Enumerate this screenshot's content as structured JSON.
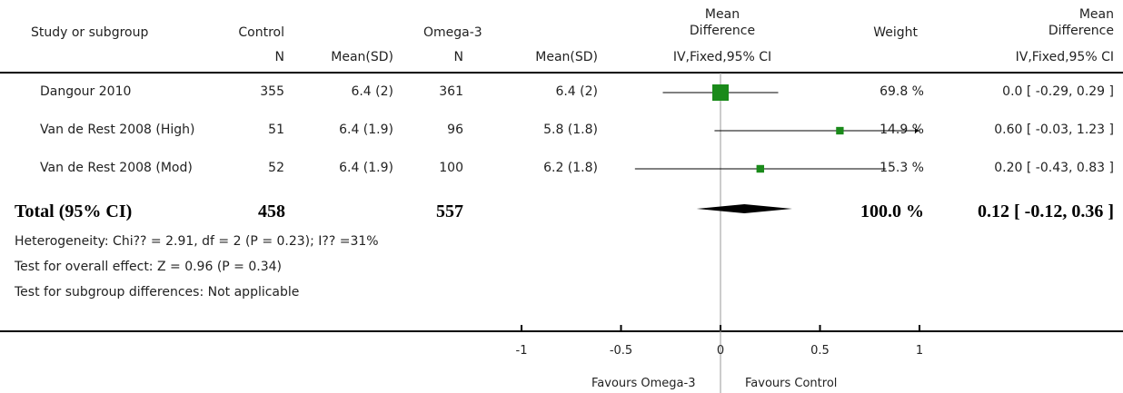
{
  "headers": {
    "study": "Study or subgroup",
    "control": "Control",
    "omega": "Omega-3",
    "md_top": "Mean",
    "md_bottom": "Difference",
    "weight": "Weight",
    "md2_top": "Mean",
    "md2_bottom": "Difference",
    "n1": "N",
    "mean1": "Mean(SD)",
    "n2": "N",
    "mean2": "Mean(SD)",
    "method": "IV,Fixed,95% CI",
    "method2": "IV,Fixed,95% CI"
  },
  "rows": [
    {
      "study": "Dangour 2010",
      "n1": "355",
      "m1": "6.4 (2)",
      "n2": "361",
      "m2": "6.4 (2)",
      "weight": "69.8 %",
      "ci": "0.0 [ -0.29, 0.29 ]"
    },
    {
      "study": "Van de Rest 2008 (High)",
      "n1": "51",
      "m1": "6.4 (1.9)",
      "n2": "96",
      "m2": "5.8 (1.8)",
      "weight": "14.9 %",
      "ci": "0.60 [ -0.03, 1.23 ]"
    },
    {
      "study": "Van de Rest 2008 (Mod)",
      "n1": "52",
      "m1": "6.4 (1.9)",
      "n2": "100",
      "m2": "6.2 (1.8)",
      "weight": "15.3 %",
      "ci": "0.20 [ -0.43, 0.83 ]"
    }
  ],
  "total": {
    "label": "Total (95% CI)",
    "n1": "458",
    "n2": "557",
    "weight": "100.0 %",
    "ci": "0.12 [ -0.12, 0.36 ]"
  },
  "footnotes": {
    "heterogeneity": "Heterogeneity: Chi?? = 2.91, df = 2 (P = 0.23); I?? =31%",
    "overall": "Test for overall effect: Z = 0.96 (P = 0.34)",
    "subgroup": "Test for subgroup differences: Not applicable"
  },
  "axis": {
    "favours_left": "Favours Omega-3",
    "favours_right": "Favours Control"
  },
  "chart_data": {
    "type": "forest",
    "xlim": [
      -1,
      1
    ],
    "ticks": [
      -1,
      -0.5,
      0,
      0.5,
      1
    ],
    "tick_labels": [
      "-1",
      "-0.5",
      "0",
      "0.5",
      "1"
    ],
    "studies": [
      {
        "name": "Dangour 2010",
        "estimate": 0.0,
        "lower": -0.29,
        "upper": 0.29,
        "weight": 69.8
      },
      {
        "name": "Van de Rest 2008 (High)",
        "estimate": 0.6,
        "lower": -0.03,
        "upper": 1.23,
        "weight": 14.9
      },
      {
        "name": "Van de Rest 2008 (Mod)",
        "estimate": 0.2,
        "lower": -0.43,
        "upper": 0.83,
        "weight": 15.3
      }
    ],
    "pooled": {
      "estimate": 0.12,
      "lower": -0.12,
      "upper": 0.36
    },
    "colors": {
      "marker": "#1a8a1a",
      "line": "#000000",
      "zero_line": "#999999"
    }
  }
}
